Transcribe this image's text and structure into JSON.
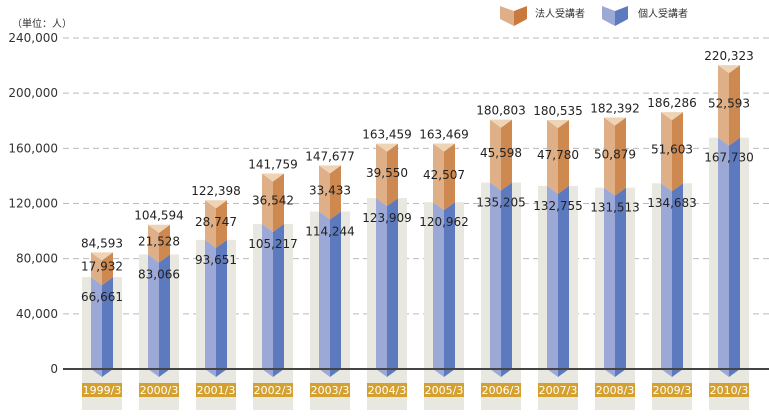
{
  "chart_data": {
    "type": "bar",
    "stacked": true,
    "unit_label": "（単位：人）",
    "categories": [
      "1999/3",
      "2000/3",
      "2001/3",
      "2002/3",
      "2003/3",
      "2004/3",
      "2005/3",
      "2006/3",
      "2007/3",
      "2008/3",
      "2009/3",
      "2010/3"
    ],
    "series": [
      {
        "name": "個人受講者",
        "color_light": "#9ca9d7",
        "color_dark": "#5e7abf",
        "values": [
          66661,
          83066,
          93651,
          105217,
          114244,
          123909,
          120962,
          135205,
          132755,
          131513,
          134683,
          167730
        ]
      },
      {
        "name": "法人受講者",
        "color_light": "#dfb088",
        "color_dark": "#cd8950",
        "values": [
          17932,
          21528,
          28747,
          36542,
          33433,
          39550,
          42507,
          45598,
          47780,
          50879,
          51603,
          52593
        ]
      }
    ],
    "totals": [
      84593,
      104594,
      122398,
      141759,
      147677,
      163459,
      163469,
      180803,
      180535,
      182392,
      186286,
      220323
    ],
    "y_ticks": [
      0,
      40000,
      80000,
      120000,
      160000,
      200000,
      240000
    ],
    "y_tick_labels": [
      "0",
      "40,000",
      "80,000",
      "120,000",
      "160,000",
      "200,000",
      "240,000"
    ],
    "ylim": [
      0,
      240000
    ],
    "grid": true,
    "legend_position": "top-right",
    "xlabel": "",
    "ylabel": ""
  }
}
